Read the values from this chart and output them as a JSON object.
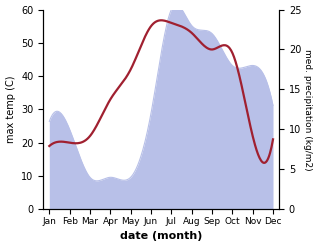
{
  "months": [
    "Jan",
    "Feb",
    "Mar",
    "Apr",
    "May",
    "Jun",
    "Jul",
    "Aug",
    "Sep",
    "Oct",
    "Nov",
    "Dec"
  ],
  "month_x": [
    0,
    1,
    2,
    3,
    4,
    5,
    6,
    7,
    8,
    9,
    10,
    11
  ],
  "temperature": [
    19,
    20,
    22,
    33,
    42,
    55,
    56,
    53,
    48,
    47,
    22,
    21
  ],
  "precipitation_right": [
    11,
    10,
    4,
    4,
    4,
    12,
    25,
    23,
    22,
    18,
    18,
    13
  ],
  "temp_color": "#a02030",
  "precip_fill_color": "#b8c0e8",
  "ylabel_left": "max temp (C)",
  "ylabel_right": "med. precipitation (kg/m2)",
  "xlabel": "date (month)",
  "ylim_left": [
    0,
    60
  ],
  "ylim_right": [
    0,
    25
  ],
  "temp_linewidth": 1.6
}
